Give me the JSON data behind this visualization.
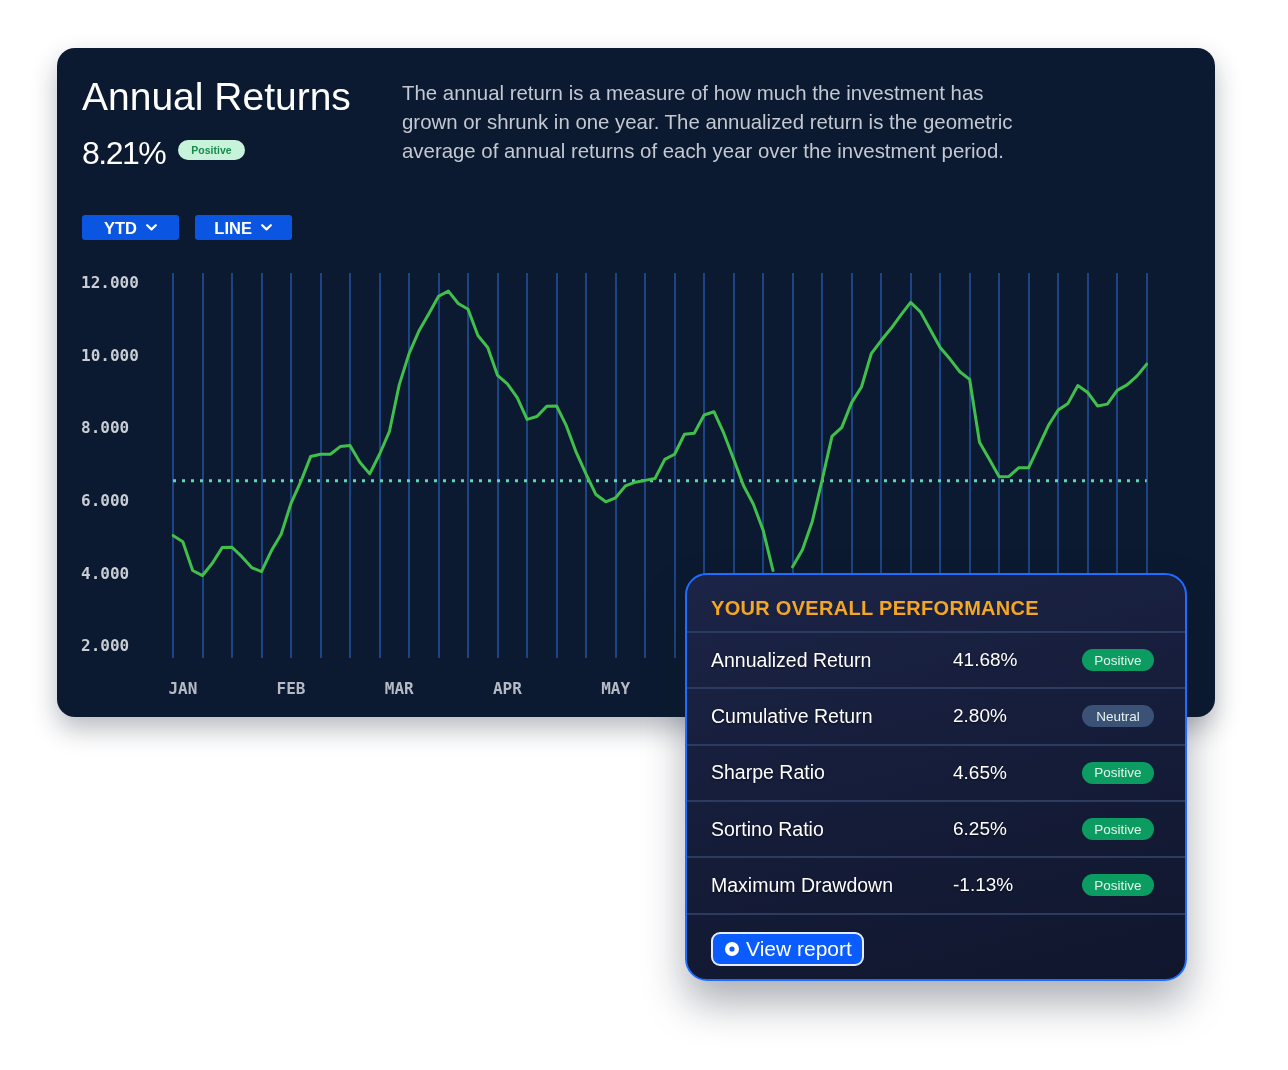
{
  "chart_data": [
    {
      "type": "line",
      "title": "Annual Returns",
      "subtitle": "The annual return is a measure of how much the investment has grown or shrunk in one year. The annualized return is the geometric average of annual returns of each year over the investment period.",
      "annotations": [
        "8.21%",
        "Positive",
        "YTD",
        "LINE"
      ],
      "categories": [
        null,
        "JAN",
        null,
        null,
        null,
        null,
        null,
        null,
        null,
        null,
        null,
        null,
        "FEB",
        null,
        null,
        null,
        null,
        null,
        null,
        null,
        null,
        null,
        null,
        "MAR",
        null,
        null,
        null,
        null,
        null,
        null,
        null,
        null,
        null,
        null,
        "APR",
        null,
        null,
        null,
        null,
        null,
        null,
        null,
        null,
        null,
        null,
        "MAY",
        null,
        null,
        null,
        null,
        null,
        null,
        null,
        null,
        null,
        null,
        null,
        null,
        null,
        null,
        null,
        null,
        null,
        null,
        null,
        null,
        null,
        null,
        null,
        null,
        null,
        null,
        null,
        null,
        null,
        null,
        null,
        null,
        null,
        null,
        null,
        null,
        null,
        null,
        null,
        null,
        null,
        null,
        null,
        null,
        null,
        null,
        null,
        null,
        null,
        null,
        null,
        null,
        null,
        null
      ],
      "values": [
        5.07,
        4.9,
        4.11,
        3.97,
        4.31,
        4.74,
        4.75,
        4.49,
        4.19,
        4.08,
        4.65,
        5.11,
        5.96,
        6.56,
        7.25,
        7.31,
        7.31,
        7.52,
        7.55,
        7.09,
        6.77,
        7.31,
        7.93,
        9.22,
        10.08,
        10.7,
        11.17,
        11.66,
        11.8,
        11.46,
        11.3,
        10.58,
        10.25,
        9.48,
        9.25,
        8.87,
        8.27,
        8.35,
        8.63,
        8.64,
        8.09,
        7.36,
        6.76,
        6.2,
        6,
        6.11,
        6.44,
        6.54,
        6.59,
        6.64,
        7.17,
        7.31,
        7.86,
        7.89,
        8.39,
        8.48,
        7.89,
        7.18,
        6.45,
        5.94,
        5.22,
        4.11,
        null,
        4.21,
        4.68,
        5.46,
        6.6,
        7.8,
        8.05,
        8.73,
        9.16,
        10.08,
        10.44,
        10.77,
        11.14,
        11.49,
        11.23,
        10.74,
        10.25,
        9.93,
        9.58,
        9.37,
        7.64,
        7.17,
        6.69,
        6.7,
        6.94,
        6.94,
        7.51,
        8.1,
        8.53,
        8.71,
        9.2,
        9.01,
        8.64,
        8.69,
        9.07,
        9.22,
        9.46,
        9.79
      ],
      "color": "#41bf4b",
      "ylim": [
        1.7,
        12.3
      ],
      "yticks": [
        {
          "value": 2,
          "label": "2.000"
        },
        {
          "value": 4,
          "label": "4.000"
        },
        {
          "value": 6,
          "label": "6.000"
        },
        {
          "value": 8,
          "label": "8.000"
        },
        {
          "value": 10,
          "label": "10.000"
        },
        {
          "value": 12,
          "label": "12.000"
        }
      ],
      "grid": "x",
      "ref_lines": [
        {
          "axis": "y",
          "value": 6.58,
          "color": "#5ed8b4",
          "line_style": "dotted"
        }
      ]
    },
    {
      "type": "other",
      "title": "YOUR OVERALL PERFORMANCE",
      "annotations": [
        "Annualized Return",
        "41.68%",
        "Positive",
        "Cumulative Return",
        "2.80%",
        "Neutral",
        "Sharpe Ratio",
        "4.65%",
        "Positive",
        "Sortino Ratio",
        "6.25%",
        "Positive",
        "Maximum Drawdown",
        "-1.13%",
        "Positive",
        "View report"
      ],
      "colors": [
        "#0c9c62",
        "#3b5176",
        "#0c9c62",
        "#0c9c62",
        "#0c9c62"
      ]
    }
  ]
}
